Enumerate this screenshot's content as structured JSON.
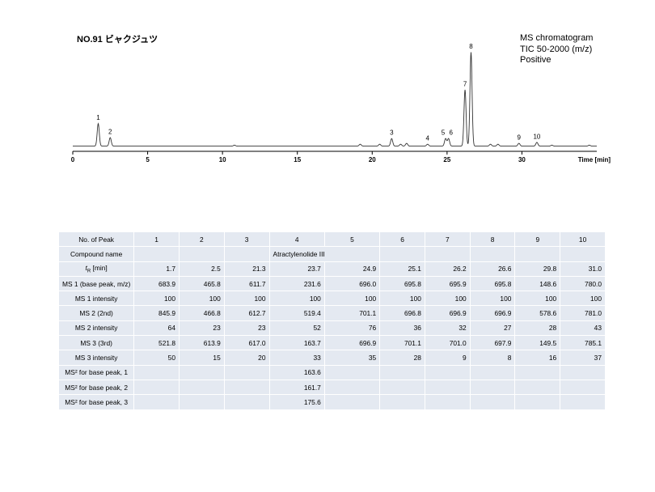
{
  "header": {
    "title": "NO.91 ビャクジュツ",
    "info_lines": [
      "MS chromatogram",
      "TIC 50-2000 (m/z)",
      "Positive"
    ]
  },
  "chart_data": {
    "type": "line",
    "title": "NO.91 ビャクジュツ",
    "xlabel": "Time [min]",
    "ylabel": "",
    "xlim": [
      0,
      35
    ],
    "x_ticks": [
      0,
      5,
      10,
      15,
      20,
      25,
      30
    ],
    "grid": false,
    "peaks": [
      {
        "label": "1",
        "rt": 1.7,
        "height": 0.24
      },
      {
        "label": "2",
        "rt": 2.5,
        "height": 0.09
      },
      {
        "label": "3",
        "rt": 21.3,
        "height": 0.08
      },
      {
        "label": "4",
        "rt": 23.7,
        "height": 0.02
      },
      {
        "label": "5",
        "rt": 24.9,
        "height": 0.08
      },
      {
        "label": "6",
        "rt": 25.1,
        "height": 0.08
      },
      {
        "label": "7",
        "rt": 26.2,
        "height": 0.6
      },
      {
        "label": "8",
        "rt": 26.6,
        "height": 1.0
      },
      {
        "label": "9",
        "rt": 29.8,
        "height": 0.03
      },
      {
        "label": "10",
        "rt": 31.0,
        "height": 0.04
      }
    ],
    "minor_peaks": [
      {
        "rt": 10.8,
        "height": 0.01
      },
      {
        "rt": 19.2,
        "height": 0.02
      },
      {
        "rt": 20.5,
        "height": 0.02
      },
      {
        "rt": 21.9,
        "height": 0.02
      },
      {
        "rt": 22.3,
        "height": 0.03
      },
      {
        "rt": 27.9,
        "height": 0.02
      },
      {
        "rt": 28.4,
        "height": 0.02
      },
      {
        "rt": 32.0,
        "height": 0.01
      },
      {
        "rt": 34.5,
        "height": 0.01
      }
    ]
  },
  "table": {
    "row_labels": [
      "No. of Peak",
      "Compound name",
      "tR [min]",
      "MS 1 (base peak, m/z)",
      "MS 1 intensity",
      "MS 2 (2nd)",
      "MS 2 intensity",
      "MS 3 (3rd)",
      "MS 3 intensity",
      "MS² for base peak, 1",
      "MS² for base peak, 2",
      "MS² for base peak, 3"
    ],
    "peak_numbers": [
      "1",
      "2",
      "3",
      "4",
      "5",
      "6",
      "7",
      "8",
      "9",
      "10"
    ],
    "compound_names": [
      "",
      "",
      "",
      "Atractylenolide III",
      "",
      "",
      "",
      "",
      "",
      ""
    ],
    "tr": [
      "1.7",
      "2.5",
      "21.3",
      "23.7",
      "24.9",
      "25.1",
      "26.2",
      "26.6",
      "29.8",
      "31.0"
    ],
    "ms1": [
      "683.9",
      "465.8",
      "611.7",
      "231.6",
      "696.0",
      "695.8",
      "695.9",
      "695.8",
      "148.6",
      "780.0"
    ],
    "ms1_i": [
      "100",
      "100",
      "100",
      "100",
      "100",
      "100",
      "100",
      "100",
      "100",
      "100"
    ],
    "ms2": [
      "845.9",
      "466.8",
      "612.7",
      "519.4",
      "701.1",
      "696.8",
      "696.9",
      "696.9",
      "578.6",
      "781.0"
    ],
    "ms2_i": [
      "64",
      "23",
      "23",
      "52",
      "76",
      "36",
      "32",
      "27",
      "28",
      "43"
    ],
    "ms3": [
      "521.8",
      "613.9",
      "617.0",
      "163.7",
      "696.9",
      "701.1",
      "701.0",
      "697.9",
      "149.5",
      "785.1"
    ],
    "ms3_i": [
      "50",
      "15",
      "20",
      "33",
      "35",
      "28",
      "9",
      "8",
      "16",
      "37"
    ],
    "msms1": [
      "",
      "",
      "",
      "163.6",
      "",
      "",
      "",
      "",
      "",
      ""
    ],
    "msms2": [
      "",
      "",
      "",
      "161.7",
      "",
      "",
      "",
      "",
      "",
      ""
    ],
    "msms3": [
      "",
      "",
      "",
      "175.6",
      "",
      "",
      "",
      "",
      "",
      ""
    ]
  }
}
